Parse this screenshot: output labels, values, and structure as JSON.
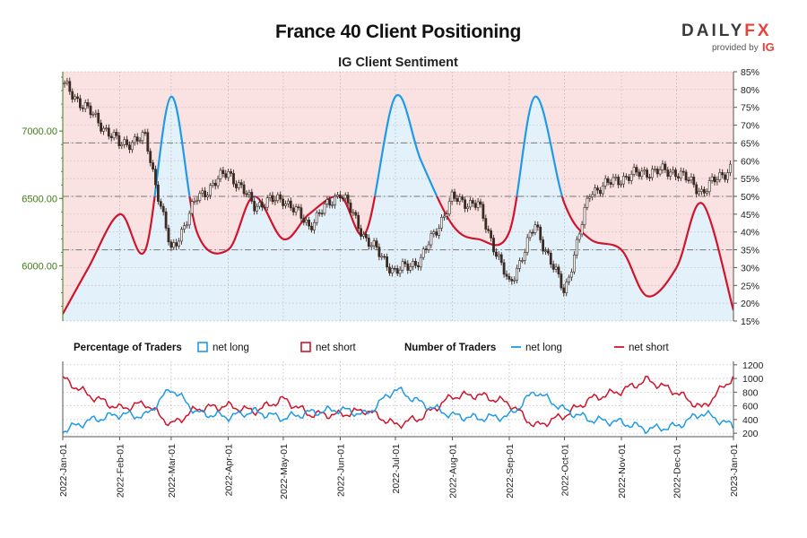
{
  "header": {
    "title": "France 40 Client Positioning",
    "subtitle": "IG Client Sentiment",
    "logo_text": "DAILYFX",
    "provided_by": "provided by",
    "provider": "IG"
  },
  "colors": {
    "net_long": "#1f9ae6",
    "net_short": "#d0142b",
    "long_fill": "#e3f1fb",
    "short_fill": "#fbe2e2",
    "candle": "#3b2a22",
    "price_axis": "#3f7d14"
  },
  "legend": {
    "pct_title": "Percentage of Traders",
    "pct_long": "net long",
    "pct_short": "net short",
    "num_title": "Number of Traders",
    "num_long": "net long",
    "num_short": "net short"
  },
  "chart_data": {
    "type": "line",
    "x_label": "",
    "x_ticks": [
      "2022-Jan-01",
      "2022-Feb-01",
      "2022-Mar-01",
      "2022-Apr-01",
      "2022-May-01",
      "2022-Jun-01",
      "2022-Jul-01",
      "2022-Aug-01",
      "2022-Sep-01",
      "2022-Oct-01",
      "2022-Nov-01",
      "2022-Dec-01",
      "2023-Jan-01"
    ],
    "x": [
      "2022-01-01",
      "2022-01-15",
      "2022-02-01",
      "2022-02-15",
      "2022-03-01",
      "2022-03-15",
      "2022-04-01",
      "2022-04-15",
      "2022-05-01",
      "2022-05-15",
      "2022-06-01",
      "2022-06-15",
      "2022-07-01",
      "2022-07-15",
      "2022-08-01",
      "2022-08-15",
      "2022-09-01",
      "2022-09-15",
      "2022-10-01",
      "2022-10-15",
      "2022-11-01",
      "2022-11-15",
      "2022-12-01",
      "2022-12-15",
      "2023-01-01"
    ],
    "price": {
      "name": "France 40",
      "y_ticks": [
        6000,
        6500,
        7000
      ],
      "y_tick_labels": [
        "6000.00",
        "6500.00",
        "7000.00"
      ],
      "ylim": [
        5590,
        7440
      ],
      "values": [
        7350,
        7150,
        6900,
        6950,
        6100,
        6500,
        6700,
        6450,
        6500,
        6300,
        6550,
        6200,
        5950,
        6050,
        6500,
        6450,
        5850,
        6300,
        5800,
        6550,
        6650,
        6700,
        6700,
        6550,
        6750
      ]
    },
    "sentiment": {
      "y_ticks": [
        15,
        20,
        25,
        30,
        35,
        40,
        45,
        50,
        55,
        60,
        65,
        70,
        75,
        80,
        85
      ],
      "y_tick_labels": [
        "15%",
        "20%",
        "25%",
        "30%",
        "35%",
        "40%",
        "45%",
        "50%",
        "55%",
        "60%",
        "65%",
        "70%",
        "75%",
        "80%",
        "85%"
      ],
      "ylim": [
        15,
        85
      ],
      "series": [
        {
          "name": "net long",
          "values": [
            17,
            30,
            45,
            35,
            78,
            40,
            35,
            50,
            38,
            45,
            50,
            40,
            78,
            60,
            42,
            38,
            40,
            78,
            48,
            38,
            35,
            22,
            30,
            48,
            18
          ]
        }
      ]
    },
    "traders": {
      "y_ticks": [
        200,
        400,
        600,
        800,
        1000,
        1200
      ],
      "y_tick_labels": [
        "200",
        "400",
        "600",
        "800",
        "1000",
        "1200"
      ],
      "ylim": [
        150,
        1250
      ],
      "series": [
        {
          "name": "net long",
          "values": [
            240,
            380,
            480,
            450,
            860,
            500,
            440,
            520,
            420,
            500,
            550,
            470,
            850,
            640,
            460,
            420,
            450,
            820,
            540,
            400,
            360,
            260,
            300,
            500,
            300
          ]
        },
        {
          "name": "net short",
          "values": [
            1000,
            760,
            560,
            640,
            320,
            560,
            600,
            520,
            700,
            480,
            470,
            540,
            320,
            430,
            740,
            760,
            640,
            300,
            460,
            700,
            820,
            980,
            800,
            560,
            1030
          ]
        }
      ]
    }
  }
}
